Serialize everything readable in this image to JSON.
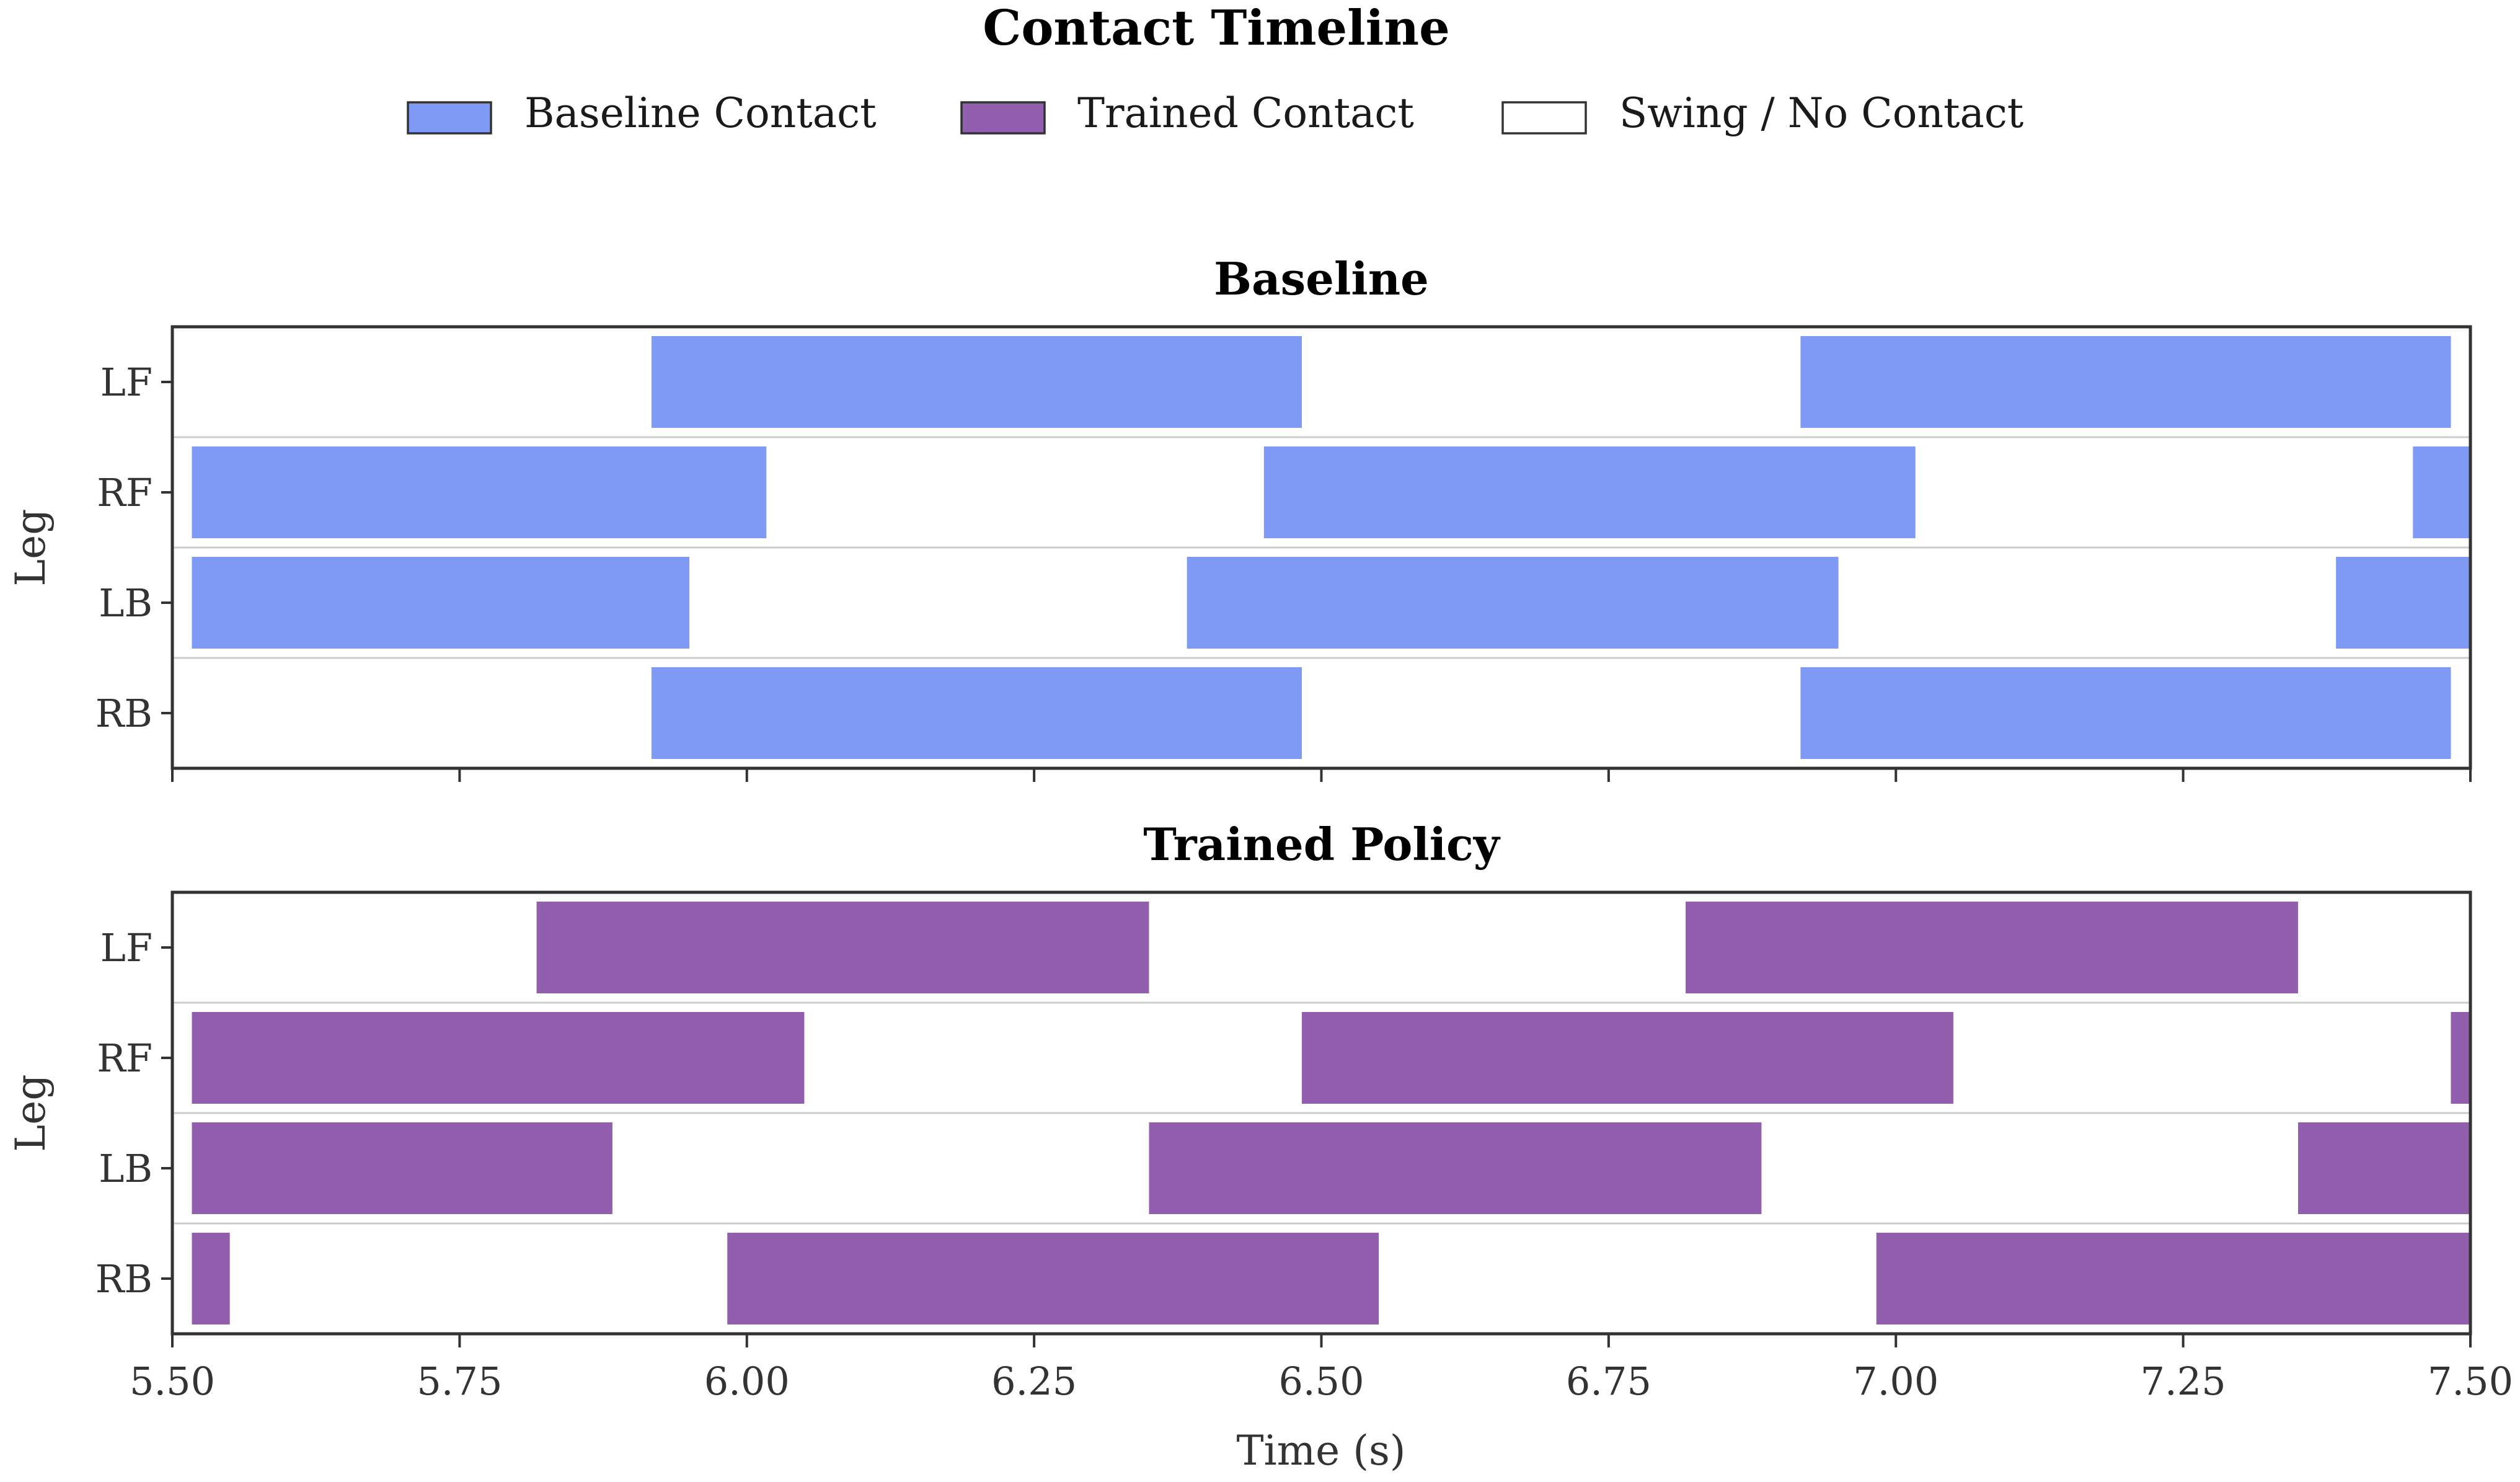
{
  "chart_data": {
    "type": "broken-bar",
    "title": "Contact Timeline",
    "legend": {
      "placement": "top-center",
      "entries": [
        {
          "label": "Baseline Contact",
          "color": "#7f9af4"
        },
        {
          "label": "Trained Contact",
          "color": "#925eae"
        },
        {
          "label": "Swing / No Contact",
          "color": "#ffffff"
        }
      ]
    },
    "xlabel": "Time (s)",
    "xlim": [
      5.5,
      7.5
    ],
    "xticks": [
      "5.50",
      "5.75",
      "6.00",
      "6.25",
      "6.50",
      "6.75",
      "7.00",
      "7.25",
      "7.50"
    ],
    "xtick_values": [
      5.5,
      5.75,
      6.0,
      6.25,
      6.5,
      6.75,
      7.0,
      7.25,
      7.5
    ],
    "legs": [
      "LF",
      "RF",
      "LB",
      "RB"
    ],
    "panels": [
      {
        "title": "Baseline",
        "ylabel": "Leg",
        "color": "#7f9af4",
        "contacts": {
          "LF": [
            [
              5.917,
              6.483
            ],
            [
              6.917,
              7.483
            ]
          ],
          "RF": [
            [
              5.517,
              6.017
            ],
            [
              6.45,
              7.017
            ],
            [
              7.45,
              7.5
            ]
          ],
          "LB": [
            [
              5.517,
              5.95
            ],
            [
              6.383,
              6.95
            ],
            [
              7.383,
              7.5
            ]
          ],
          "RB": [
            [
              5.917,
              6.483
            ],
            [
              6.917,
              7.483
            ]
          ]
        }
      },
      {
        "title": "Trained Policy",
        "ylabel": "Leg",
        "color": "#925eae",
        "contacts": {
          "LF": [
            [
              5.817,
              6.35
            ],
            [
              6.817,
              7.35
            ]
          ],
          "RF": [
            [
              5.517,
              6.05
            ],
            [
              6.483,
              7.05
            ],
            [
              7.483,
              7.5
            ]
          ],
          "LB": [
            [
              5.517,
              5.883
            ],
            [
              6.35,
              6.883
            ],
            [
              7.35,
              7.5
            ]
          ],
          "RB": [
            [
              5.517,
              5.55
            ],
            [
              5.983,
              6.55
            ],
            [
              6.983,
              7.5
            ]
          ]
        }
      }
    ]
  }
}
